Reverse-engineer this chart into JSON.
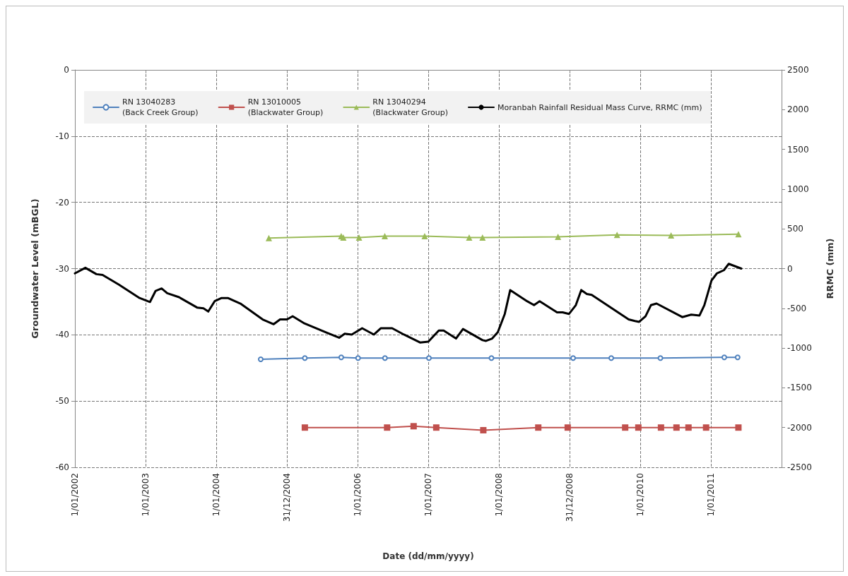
{
  "chart_data": {
    "type": "line",
    "xlabel": "Date (dd/mm/yyyy)",
    "ylabel": "Groundwater Level (mBGL)",
    "y2label": "RRMC (mm)",
    "xlim": [
      "2002-01-01",
      "2011-12-31"
    ],
    "xticks": [
      {
        "value": "2002-01-01",
        "label": "1/01/2002"
      },
      {
        "value": "2003-01-01",
        "label": "1/01/2003"
      },
      {
        "value": "2004-01-01",
        "label": "1/01/2004"
      },
      {
        "value": "2004-12-31",
        "label": "31/12/2004"
      },
      {
        "value": "2006-01-01",
        "label": "1/01/2006"
      },
      {
        "value": "2007-01-01",
        "label": "1/01/2007"
      },
      {
        "value": "2008-01-01",
        "label": "1/01/2008"
      },
      {
        "value": "2008-12-31",
        "label": "31/12/2008"
      },
      {
        "value": "2010-01-01",
        "label": "1/01/2010"
      },
      {
        "value": "2011-01-01",
        "label": "1/01/2011"
      },
      {
        "value": "2011-12-31",
        "label": null
      }
    ],
    "ylim": [
      -60,
      0
    ],
    "yticks": [
      -60,
      -50,
      -40,
      -30,
      -20,
      -10,
      0
    ],
    "y2lim": [
      -2500,
      2500
    ],
    "y2ticks": [
      -2500,
      -2000,
      -1500,
      -1000,
      -500,
      0,
      500,
      1000,
      1500,
      2000,
      2500
    ],
    "grid": true,
    "legend": "top",
    "line_style": "solid",
    "series": [
      {
        "name": "RN 13040283\n(Back Creek Group)",
        "color": "#4f81bd",
        "marker": "circle",
        "x": [
          "2004-08-18",
          "2005-04-03",
          "2005-10-08",
          "2006-01-03",
          "2006-05-22",
          "2007-01-04",
          "2007-11-23",
          "2009-01-18",
          "2009-08-03",
          "2010-04-14",
          "2011-03-10",
          "2011-05-18"
        ],
        "values": [
          -43.7,
          -43.5,
          -43.4,
          -43.5,
          -43.5,
          -43.5,
          -43.5,
          -43.5,
          -43.5,
          -43.5,
          -43.4,
          -43.4
        ]
      },
      {
        "name": "RN 13010005\n(Blackwater Group)",
        "color": "#c0504d",
        "marker": "square",
        "x": [
          "2005-04-03",
          "2006-06-02",
          "2006-10-17",
          "2007-02-11",
          "2007-10-12",
          "2008-07-22",
          "2008-12-21",
          "2009-10-14",
          "2009-12-21",
          "2010-04-17",
          "2010-07-06",
          "2010-09-06",
          "2010-12-06",
          "2011-05-22"
        ],
        "values": [
          -54.0,
          -54.0,
          -53.8,
          -54.0,
          -54.4,
          -54.0,
          -54.0,
          -54.0,
          -54.0,
          -54.0,
          -54.0,
          -54.0,
          -54.0,
          -54.0
        ]
      },
      {
        "name": "RN 13040294\n(Blackwater Group)",
        "color": "#9bbb59",
        "marker": "triangle",
        "x": [
          "2004-09-29",
          "2005-10-08",
          "2005-10-19",
          "2006-01-08",
          "2006-05-21",
          "2006-12-13",
          "2007-07-31",
          "2007-10-08",
          "2008-11-01",
          "2009-09-02",
          "2010-06-08",
          "2011-05-22"
        ],
        "values": [
          -25.4,
          -25.1,
          -25.3,
          -25.3,
          -25.1,
          -25.1,
          -25.3,
          -25.3,
          -25.2,
          -24.9,
          -25.0,
          -24.8
        ]
      },
      {
        "name": "Moranbah Rainfall Residual Mass Curve, RRMC (mm)",
        "color": "#000000",
        "marker": "none",
        "axis": "y2",
        "x": [
          "2002-01-01",
          "2002-02-24",
          "2002-04-22",
          "2002-05-24",
          "2002-08-15",
          "2002-12-01",
          "2003-01-24",
          "2003-02-22",
          "2003-03-25",
          "2003-04-23",
          "2003-06-23",
          "2003-09-24",
          "2003-10-27",
          "2003-11-21",
          "2003-12-24",
          "2004-01-29",
          "2004-03-01",
          "2004-05-05",
          "2004-08-28",
          "2004-10-24",
          "2004-11-26",
          "2005-01-01",
          "2005-01-30",
          "2005-04-01",
          "2005-07-28",
          "2005-09-27",
          "2005-10-26",
          "2005-12-01",
          "2006-01-24",
          "2006-03-26",
          "2006-05-01",
          "2006-06-28",
          "2006-08-28",
          "2006-11-19",
          "2007-01-01",
          "2007-02-24",
          "2007-03-21",
          "2007-05-24",
          "2007-06-29",
          "2007-10-08",
          "2007-10-26",
          "2007-11-27",
          "2007-12-26",
          "2008-01-31",
          "2008-02-28",
          "2008-05-25",
          "2008-06-30",
          "2008-07-29",
          "2008-10-27",
          "2008-11-25",
          "2008-12-28",
          "2009-02-01",
          "2009-03-01",
          "2009-03-30",
          "2009-04-24",
          "2009-11-01",
          "2009-12-03",
          "2009-12-25",
          "2010-01-27",
          "2010-02-24",
          "2010-03-25",
          "2010-08-05",
          "2010-09-20",
          "2010-11-02",
          "2010-11-27",
          "2011-01-03",
          "2011-01-31",
          "2011-03-08",
          "2011-04-02",
          "2011-06-06"
        ],
        "values": [
          -60,
          10,
          -70,
          -80,
          -200,
          -370,
          -420,
          -280,
          -250,
          -310,
          -360,
          -490,
          -500,
          -540,
          -410,
          -370,
          -370,
          -440,
          -640,
          -700,
          -640,
          -640,
          -600,
          -690,
          -810,
          -870,
          -820,
          -830,
          -750,
          -830,
          -750,
          -750,
          -830,
          -930,
          -920,
          -780,
          -780,
          -880,
          -760,
          -900,
          -910,
          -880,
          -800,
          -570,
          -270,
          -410,
          -460,
          -410,
          -550,
          -550,
          -570,
          -460,
          -270,
          -320,
          -330,
          -640,
          -660,
          -670,
          -600,
          -460,
          -440,
          -610,
          -580,
          -590,
          -460,
          -150,
          -60,
          -20,
          60,
          0
        ]
      }
    ]
  }
}
